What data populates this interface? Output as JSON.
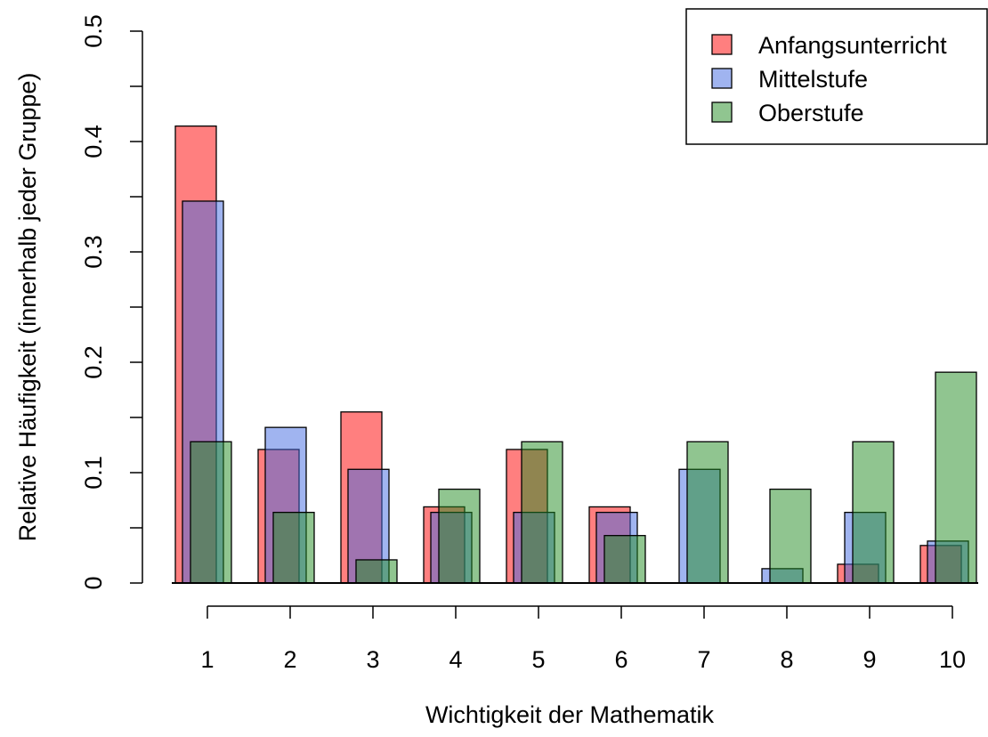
{
  "chart_data": {
    "type": "bar",
    "title": "",
    "xlabel": "Wichtigkeit der Mathematik",
    "ylabel": "Relative Häufigkeit (innerhalb jeder Gruppe)",
    "categories": [
      "1",
      "2",
      "3",
      "4",
      "5",
      "6",
      "7",
      "8",
      "9",
      "10"
    ],
    "ylim": [
      0,
      0.5
    ],
    "y_ticks": [
      "0",
      "0.1",
      "0.2",
      "0.3",
      "0.4",
      "0.5"
    ],
    "grid": false,
    "legend_position": "top-right",
    "series": [
      {
        "name": "Anfangsunterricht",
        "color": "#ff0000",
        "opacity": 0.5,
        "values": [
          0.414,
          0.121,
          0.155,
          0.069,
          0.121,
          0.069,
          0.0,
          0.0,
          0.017,
          0.034
        ]
      },
      {
        "name": "Mittelstufe",
        "color": "#4169e1",
        "opacity": 0.5,
        "values": [
          0.346,
          0.141,
          0.103,
          0.064,
          0.064,
          0.064,
          0.103,
          0.013,
          0.064,
          0.038
        ]
      },
      {
        "name": "Oberstufe",
        "color": "#228b22",
        "opacity": 0.5,
        "values": [
          0.128,
          0.064,
          0.021,
          0.085,
          0.128,
          0.043,
          0.128,
          0.085,
          0.128,
          0.191
        ]
      }
    ]
  }
}
